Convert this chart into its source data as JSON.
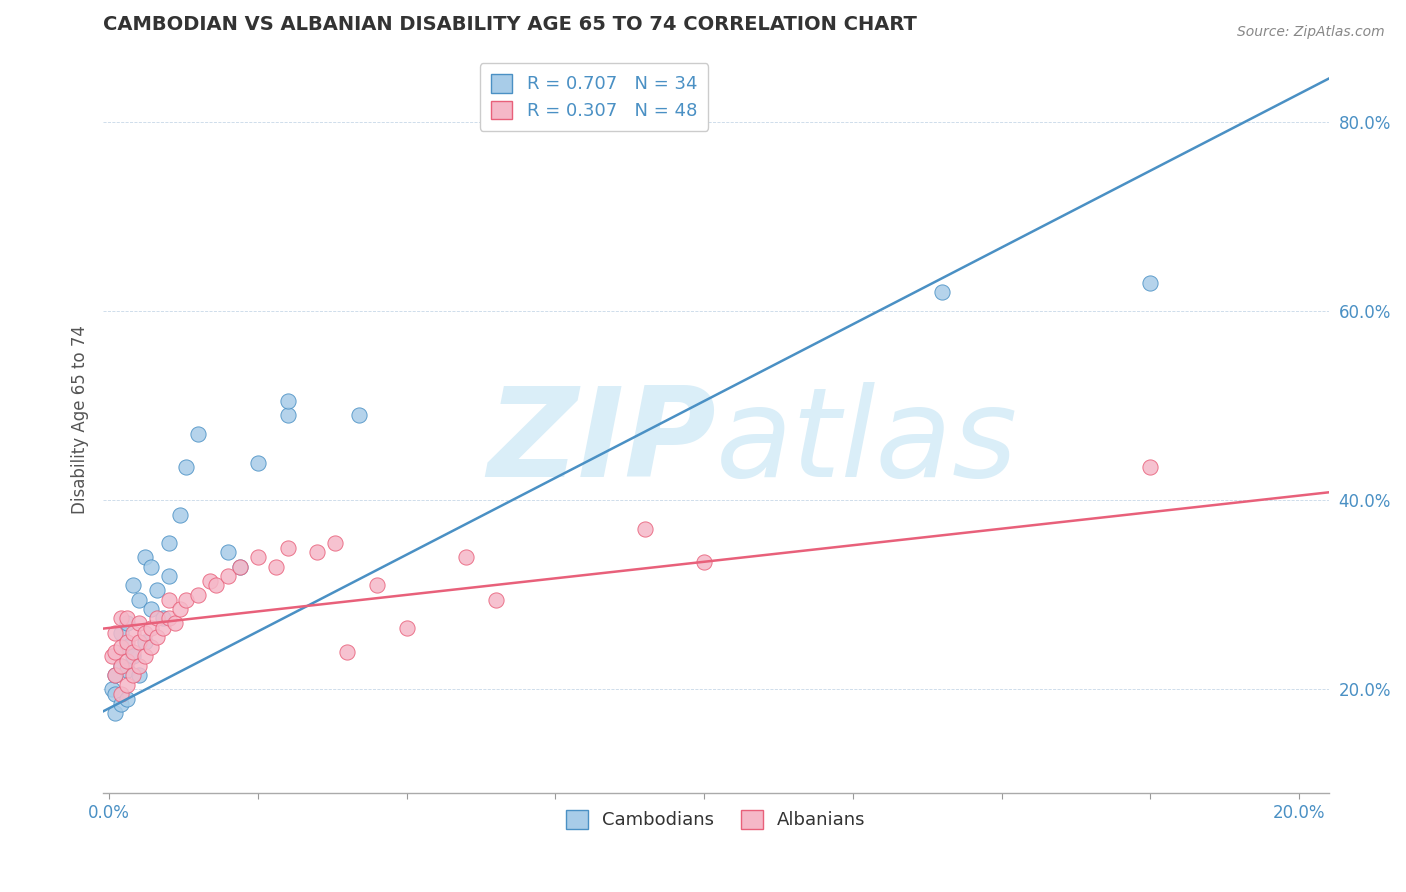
{
  "title": "CAMBODIAN VS ALBANIAN DISABILITY AGE 65 TO 74 CORRELATION CHART",
  "source_text": "Source: ZipAtlas.com",
  "xlim": [
    -0.001,
    0.205
  ],
  "ylim": [
    0.09,
    0.88
  ],
  "yticks": [
    0.2,
    0.4,
    0.6,
    0.8
  ],
  "xticks_show": [
    0.0,
    0.2
  ],
  "xticks_minor": [
    0.025,
    0.05,
    0.075,
    0.1,
    0.125,
    0.15,
    0.175
  ],
  "cambodian_R": 0.707,
  "cambodian_N": 34,
  "albanian_R": 0.307,
  "albanian_N": 48,
  "blue_scatter_color": "#a8cce8",
  "pink_scatter_color": "#f5b8c8",
  "blue_line_color": "#4a90c4",
  "pink_line_color": "#e8607a",
  "blue_legend_color": "#4a90c4",
  "background_color": "#ffffff",
  "watermark_color": "#daeef8",
  "tick_color": "#4a90c4",
  "grid_color": "#c8d8e8",
  "camb_intercept": 0.18,
  "camb_slope": 3.25,
  "alb_intercept": 0.265,
  "alb_slope": 0.7,
  "cambodian_x": [
    0.0005,
    0.001,
    0.001,
    0.001,
    0.002,
    0.002,
    0.002,
    0.003,
    0.003,
    0.003,
    0.003,
    0.004,
    0.004,
    0.005,
    0.005,
    0.006,
    0.006,
    0.007,
    0.007,
    0.008,
    0.009,
    0.01,
    0.01,
    0.012,
    0.013,
    0.015,
    0.02,
    0.022,
    0.025,
    0.03,
    0.03,
    0.042,
    0.14,
    0.175
  ],
  "cambodian_y": [
    0.2,
    0.175,
    0.195,
    0.215,
    0.185,
    0.225,
    0.26,
    0.19,
    0.22,
    0.245,
    0.27,
    0.235,
    0.31,
    0.215,
    0.295,
    0.25,
    0.34,
    0.285,
    0.33,
    0.305,
    0.275,
    0.355,
    0.32,
    0.385,
    0.435,
    0.47,
    0.345,
    0.33,
    0.44,
    0.49,
    0.505,
    0.49,
    0.62,
    0.63
  ],
  "albanian_x": [
    0.0005,
    0.001,
    0.001,
    0.001,
    0.002,
    0.002,
    0.002,
    0.002,
    0.003,
    0.003,
    0.003,
    0.003,
    0.004,
    0.004,
    0.004,
    0.005,
    0.005,
    0.005,
    0.006,
    0.006,
    0.007,
    0.007,
    0.008,
    0.008,
    0.009,
    0.01,
    0.01,
    0.011,
    0.012,
    0.013,
    0.015,
    0.017,
    0.018,
    0.02,
    0.022,
    0.025,
    0.028,
    0.03,
    0.035,
    0.038,
    0.04,
    0.045,
    0.05,
    0.06,
    0.065,
    0.09,
    0.1,
    0.175
  ],
  "albanian_y": [
    0.235,
    0.215,
    0.24,
    0.26,
    0.195,
    0.225,
    0.245,
    0.275,
    0.205,
    0.23,
    0.25,
    0.275,
    0.215,
    0.24,
    0.26,
    0.225,
    0.25,
    0.27,
    0.235,
    0.26,
    0.245,
    0.265,
    0.255,
    0.275,
    0.265,
    0.275,
    0.295,
    0.27,
    0.285,
    0.295,
    0.3,
    0.315,
    0.31,
    0.32,
    0.33,
    0.34,
    0.33,
    0.35,
    0.345,
    0.355,
    0.24,
    0.31,
    0.265,
    0.34,
    0.295,
    0.37,
    0.335,
    0.435
  ],
  "legend_label_cambodians": "Cambodians",
  "legend_label_albanians": "Albanians",
  "ylabel": "Disability Age 65 to 74"
}
